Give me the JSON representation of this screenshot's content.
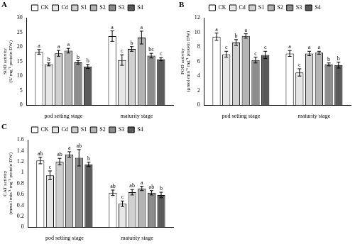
{
  "chart_data": [
    {
      "type": "bar",
      "title": "A",
      "y_label": "SOD activity (U mg⁻¹ protein DW)",
      "categories": [
        "pod setting stage",
        "maturity stage"
      ],
      "series": [
        {
          "name": "CK",
          "color": "#ffffff",
          "values": [
            18.3,
            23.7
          ],
          "errors": [
            0.8,
            1.8
          ],
          "letters": [
            "a",
            "a"
          ]
        },
        {
          "name": "Cd",
          "color": "#e6e6e6",
          "values": [
            14.0,
            15.5
          ],
          "errors": [
            0.5,
            1.8
          ],
          "letters": [
            "b",
            "c"
          ]
        },
        {
          "name": "S1",
          "color": "#d0d0d0",
          "values": [
            17.8,
            19.3
          ],
          "errors": [
            1.0,
            0.8
          ],
          "letters": [
            "a",
            "b"
          ]
        },
        {
          "name": "S2",
          "color": "#b4b4b4",
          "values": [
            18.7,
            23.2
          ],
          "errors": [
            0.8,
            2.2
          ],
          "letters": [
            "a",
            "a"
          ]
        },
        {
          "name": "S3",
          "color": "#8c8c8c",
          "values": [
            14.7,
            17.0
          ],
          "errors": [
            0.6,
            0.8
          ],
          "letters": [
            "b",
            "bc"
          ]
        },
        {
          "name": "S4",
          "color": "#5a5a5a",
          "values": [
            13.3,
            15.8
          ],
          "errors": [
            0.7,
            0.5
          ],
          "letters": [
            "b",
            "c"
          ]
        }
      ],
      "ylim": [
        0,
        30
      ],
      "yticks": [
        0,
        5,
        10,
        15,
        20,
        25,
        30
      ],
      "grid": false,
      "legend": "top"
    },
    {
      "type": "bar",
      "title": "B",
      "y_label": "POD activity (μmol min⁻¹ mg⁻¹ protein DW)",
      "categories": [
        "pod setting stage",
        "maturity stage"
      ],
      "series": [
        {
          "name": "CK",
          "color": "#ffffff",
          "values": [
            9.4,
            7.1
          ],
          "errors": [
            0.5,
            0.4
          ],
          "letters": [
            "a",
            "a"
          ]
        },
        {
          "name": "Cd",
          "color": "#e6e6e6",
          "values": [
            7.0,
            4.5
          ],
          "errors": [
            0.4,
            0.5
          ],
          "letters": [
            "c",
            "c"
          ]
        },
        {
          "name": "S1",
          "color": "#d0d0d0",
          "values": [
            8.6,
            7.1
          ],
          "errors": [
            0.4,
            0.3
          ],
          "letters": [
            "b",
            "a"
          ]
        },
        {
          "name": "S2",
          "color": "#b4b4b4",
          "values": [
            9.5,
            7.2
          ],
          "errors": [
            0.3,
            0.2
          ],
          "letters": [
            "a",
            "a"
          ]
        },
        {
          "name": "S3",
          "color": "#8c8c8c",
          "values": [
            6.2,
            5.6
          ],
          "errors": [
            0.4,
            0.2
          ],
          "letters": [
            "c",
            "b"
          ]
        },
        {
          "name": "S4",
          "color": "#5a5a5a",
          "values": [
            6.9,
            5.5
          ],
          "errors": [
            0.5,
            0.4
          ],
          "letters": [
            "c",
            "b"
          ]
        }
      ],
      "ylim": [
        0,
        12
      ],
      "yticks": [
        0,
        2,
        4,
        6,
        8,
        10,
        12
      ],
      "grid": false,
      "legend": "top"
    },
    {
      "type": "bar",
      "title": "C",
      "y_label": "CAT activity (mmol min⁻¹ mg⁻¹ protein DW)",
      "categories": [
        "pod setting stage",
        "maturity stage"
      ],
      "series": [
        {
          "name": "CK",
          "color": "#ffffff",
          "values": [
            1.22,
            0.63
          ],
          "errors": [
            0.06,
            0.05
          ],
          "letters": [
            "ab",
            "ab"
          ]
        },
        {
          "name": "Cd",
          "color": "#e6e6e6",
          "values": [
            0.95,
            0.43
          ],
          "errors": [
            0.08,
            0.05
          ],
          "letters": [
            "c",
            "c"
          ]
        },
        {
          "name": "S1",
          "color": "#d0d0d0",
          "values": [
            1.2,
            0.64
          ],
          "errors": [
            0.06,
            0.05
          ],
          "letters": [
            "ab",
            "ab"
          ]
        },
        {
          "name": "S2",
          "color": "#b4b4b4",
          "values": [
            1.33,
            0.71
          ],
          "errors": [
            0.05,
            0.04
          ],
          "letters": [
            "a",
            "a"
          ]
        },
        {
          "name": "S3",
          "color": "#8c8c8c",
          "values": [
            1.27,
            0.63
          ],
          "errors": [
            0.15,
            0.04
          ],
          "letters": [
            "ab",
            "ab"
          ]
        },
        {
          "name": "S4",
          "color": "#5a5a5a",
          "values": [
            1.15,
            0.59
          ],
          "errors": [
            0.04,
            0.05
          ],
          "letters": [
            "b",
            "b"
          ]
        }
      ],
      "ylim": [
        0,
        1.6
      ],
      "yticks": [
        0,
        0.2,
        0.4,
        0.6,
        0.8,
        1,
        1.2,
        1.4,
        1.6
      ],
      "grid": false,
      "legend": "top"
    }
  ]
}
